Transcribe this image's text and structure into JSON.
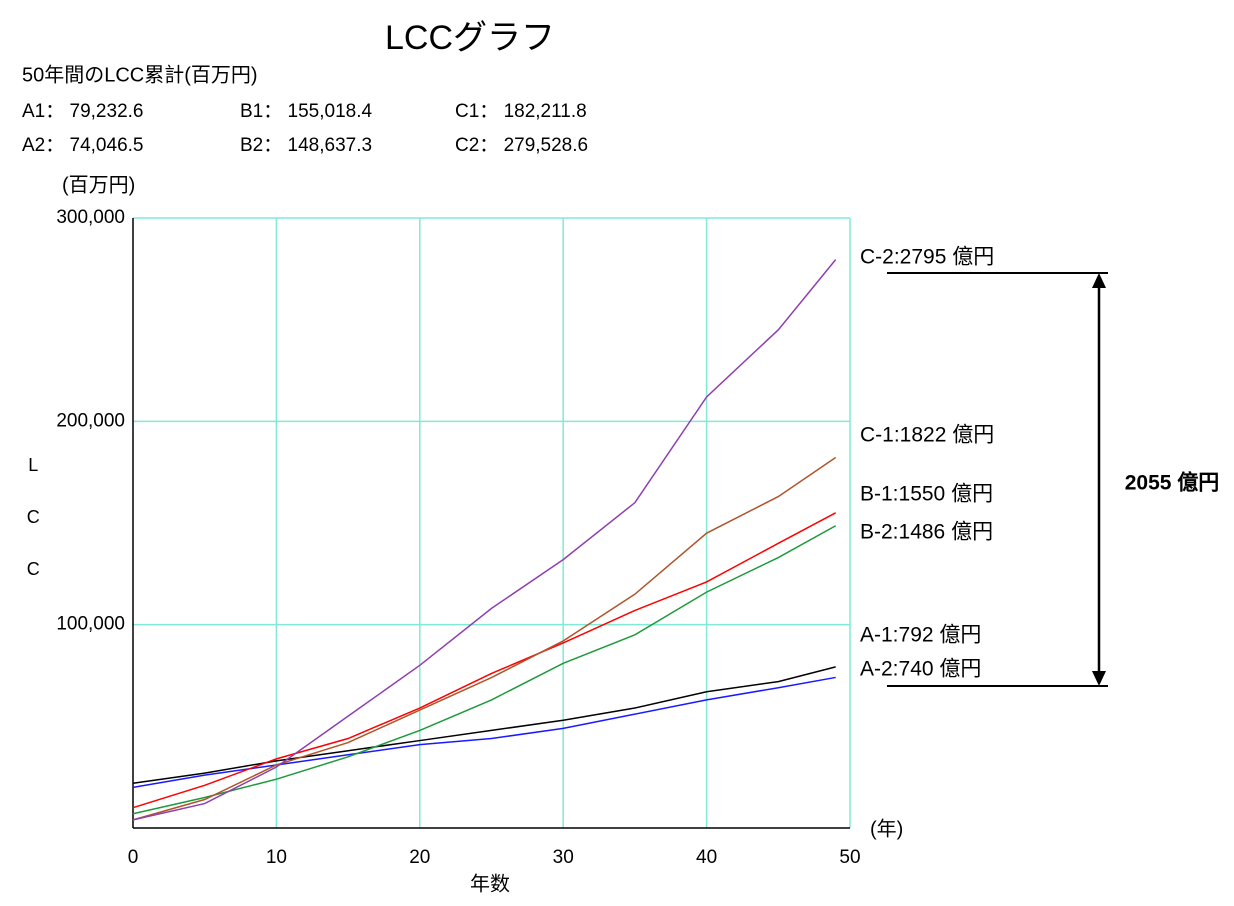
{
  "chart_data": {
    "type": "line",
    "title": "LCCグラフ",
    "subtitle": "50年間のLCC累計(百万円)",
    "ylabel": "LCC",
    "yunit": "(百万円)",
    "xlabel": "年数",
    "xunit": "(年)",
    "x": [
      0,
      5,
      10,
      15,
      20,
      25,
      30,
      35,
      40,
      45,
      49
    ],
    "xlim": [
      0,
      50
    ],
    "xticks": [
      0,
      10,
      20,
      30,
      40,
      50
    ],
    "ylim": [
      0,
      300000
    ],
    "yticks": [
      {
        "value": 100000,
        "label": "100,000"
      },
      {
        "value": 200000,
        "label": "200,000"
      },
      {
        "value": 300000,
        "label": "300,000"
      }
    ],
    "grid": true,
    "grid_color": "#80ead6",
    "series": [
      {
        "name": "A1： 79,232.6",
        "end_label": "A-1:792 億円",
        "color": "#000000",
        "values": [
          22000,
          27000,
          33000,
          38000,
          43000,
          48000,
          53000,
          59000,
          67000,
          72000,
          79232.6
        ]
      },
      {
        "name": "A2： 74,046.5",
        "end_label": "A-2:740 億円",
        "color": "#1a1aff",
        "values": [
          20000,
          26000,
          31000,
          36000,
          41000,
          44000,
          49000,
          56000,
          63000,
          69000,
          74046.5
        ]
      },
      {
        "name": "B1： 155,018.4",
        "end_label": "B-1:1550 億円",
        "color": "#ff0000",
        "values": [
          10000,
          21000,
          34000,
          44000,
          59000,
          76000,
          91000,
          107000,
          121000,
          140000,
          155018.4
        ]
      },
      {
        "name": "B2： 148,637.3",
        "end_label": "B-2:1486 億円",
        "color": "#1e9a3c",
        "values": [
          7000,
          15000,
          24000,
          35000,
          48000,
          63000,
          81000,
          95000,
          116000,
          133000,
          148637.3
        ]
      },
      {
        "name": "C1： 182,211.8",
        "end_label": "C-1:1822 億円",
        "color": "#b0552a",
        "values": [
          4000,
          14000,
          31000,
          42000,
          58000,
          74000,
          92000,
          115000,
          145000,
          163000,
          182211.8
        ]
      },
      {
        "name": "C2： 279,528.6",
        "end_label": "C-2:2795 億円",
        "color": "#8e3fb0",
        "values": [
          4000,
          12000,
          30000,
          55000,
          80000,
          108000,
          132000,
          160000,
          212000,
          245000,
          279528.6
        ]
      }
    ],
    "annotation": {
      "text": "2055 億円",
      "color": "#ff0000"
    }
  }
}
